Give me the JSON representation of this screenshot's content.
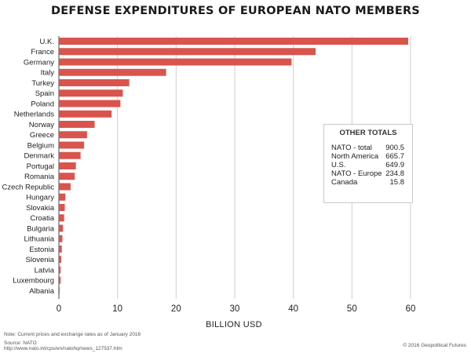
{
  "chart_data": {
    "type": "bar",
    "orientation": "horizontal",
    "title": "DEFENSE EXPENDITURES OF EUROPEAN NATO MEMBERS",
    "xlabel": "BILLION USD",
    "ylabel": "",
    "xlim": [
      0,
      60
    ],
    "xticks": [
      0,
      10,
      20,
      30,
      40,
      50,
      60
    ],
    "grid": "vertical",
    "categories": [
      "U.K.",
      "France",
      "Germany",
      "Italy",
      "Turkey",
      "Spain",
      "Poland",
      "Netherlands",
      "Norway",
      "Greece",
      "Belgium",
      "Denmark",
      "Portugal",
      "Romania",
      "Czech Republic",
      "Hungary",
      "Slovakia",
      "Croatia",
      "Bulgaria",
      "Lithuania",
      "Estonia",
      "Slovenia",
      "Latvia",
      "Luxembourg",
      "Albania"
    ],
    "values": [
      59.6,
      43.8,
      39.7,
      18.3,
      12.0,
      10.9,
      10.5,
      9.0,
      6.1,
      4.8,
      4.3,
      3.7,
      2.9,
      2.7,
      2.0,
      1.1,
      1.0,
      0.9,
      0.7,
      0.6,
      0.5,
      0.4,
      0.3,
      0.3,
      0.1
    ],
    "color": "#d9544d"
  },
  "totals": {
    "title": "OTHER TOTALS",
    "rows": [
      {
        "label": "NATO - total",
        "value": "900.5"
      },
      {
        "label": "North America",
        "value": "665.7"
      },
      {
        "label": "U.S.",
        "value": "649.9"
      },
      {
        "label": "NATO - Europe",
        "value": "234.8"
      },
      {
        "label": "Canada",
        "value": "15.8"
      }
    ]
  },
  "footer": {
    "note": "Note: Current prices and exchange rates as of January 2016",
    "source": "Source: NATO",
    "url": "http://www.nato.int/cps/en/natohq/news_127537.htm",
    "credit": "© 2016 Geopolitical Futures"
  }
}
